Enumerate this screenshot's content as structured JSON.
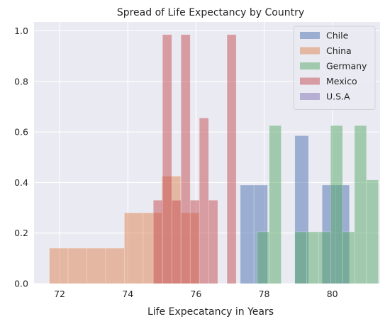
{
  "chart_data": {
    "type": "histogram",
    "title": "Spread of Life Expectancy by Country",
    "xlabel": "Life Expecatancy in Years",
    "ylabel": "",
    "xlim": [
      71.25,
      81.4
    ],
    "ylim": [
      0,
      1.035
    ],
    "xticks": [
      72,
      74,
      76,
      78,
      80
    ],
    "yticks": [
      0.0,
      0.2,
      0.4,
      0.6,
      0.8,
      1.0
    ],
    "xtick_labels": [
      "72",
      "74",
      "76",
      "78",
      "80"
    ],
    "ytick_labels": [
      "0.0",
      "0.2",
      "0.4",
      "0.6",
      "0.8",
      "1.0"
    ],
    "grid": true,
    "legend_position": "top-right",
    "bar_opacity": 0.5,
    "series": [
      {
        "name": "Chile",
        "color": "#4c72b0",
        "bins": [
          {
            "x0": 77.3,
            "x1": 77.7,
            "y": 0.39
          },
          {
            "x0": 77.7,
            "x1": 78.1,
            "y": 0.39
          },
          {
            "x0": 78.5,
            "x1": 78.9,
            "y": 0.0
          },
          {
            "x0": 78.9,
            "x1": 79.3,
            "y": 0.585
          },
          {
            "x0": 79.7,
            "x1": 80.1,
            "y": 0.39
          },
          {
            "x0": 80.1,
            "x1": 80.5,
            "y": 0.39
          }
        ]
      },
      {
        "name": "China",
        "color": "#dd8452",
        "bins": [
          {
            "x0": 71.7,
            "x1": 72.25,
            "y": 0.14
          },
          {
            "x0": 72.25,
            "x1": 72.8,
            "y": 0.14
          },
          {
            "x0": 72.8,
            "x1": 73.35,
            "y": 0.14
          },
          {
            "x0": 73.35,
            "x1": 73.9,
            "y": 0.14
          },
          {
            "x0": 73.9,
            "x1": 74.45,
            "y": 0.28
          },
          {
            "x0": 74.45,
            "x1": 75.0,
            "y": 0.28
          },
          {
            "x0": 75.0,
            "x1": 75.55,
            "y": 0.425
          },
          {
            "x0": 75.55,
            "x1": 76.1,
            "y": 0.28
          },
          {
            "x0": 76.1,
            "x1": 76.3,
            "y": 0.0
          }
        ]
      },
      {
        "name": "Germany",
        "color": "#55a868",
        "bins": [
          {
            "x0": 77.8,
            "x1": 78.15,
            "y": 0.205
          },
          {
            "x0": 78.15,
            "x1": 78.5,
            "y": 0.625
          },
          {
            "x0": 78.9,
            "x1": 79.25,
            "y": 0.205
          },
          {
            "x0": 79.25,
            "x1": 79.6,
            "y": 0.205
          },
          {
            "x0": 79.6,
            "x1": 79.95,
            "y": 0.205
          },
          {
            "x0": 79.95,
            "x1": 80.3,
            "y": 0.625
          },
          {
            "x0": 80.3,
            "x1": 80.65,
            "y": 0.205
          },
          {
            "x0": 80.65,
            "x1": 81.0,
            "y": 0.625
          },
          {
            "x0": 81.0,
            "x1": 81.35,
            "y": 0.41
          }
        ]
      },
      {
        "name": "Mexico",
        "color": "#c44e52",
        "bins": [
          {
            "x0": 74.75,
            "x1": 75.02,
            "y": 0.33
          },
          {
            "x0": 75.02,
            "x1": 75.29,
            "y": 0.985
          },
          {
            "x0": 75.29,
            "x1": 75.56,
            "y": 0.33
          },
          {
            "x0": 75.56,
            "x1": 75.83,
            "y": 0.985
          },
          {
            "x0": 75.83,
            "x1": 76.1,
            "y": 0.33
          },
          {
            "x0": 76.1,
            "x1": 76.37,
            "y": 0.655
          },
          {
            "x0": 76.37,
            "x1": 76.64,
            "y": 0.33
          },
          {
            "x0": 76.64,
            "x1": 76.91,
            "y": 0.0
          },
          {
            "x0": 76.91,
            "x1": 77.18,
            "y": 0.985
          }
        ]
      },
      {
        "name": "U.S.A",
        "color": "#8172b3",
        "bins": []
      }
    ]
  }
}
